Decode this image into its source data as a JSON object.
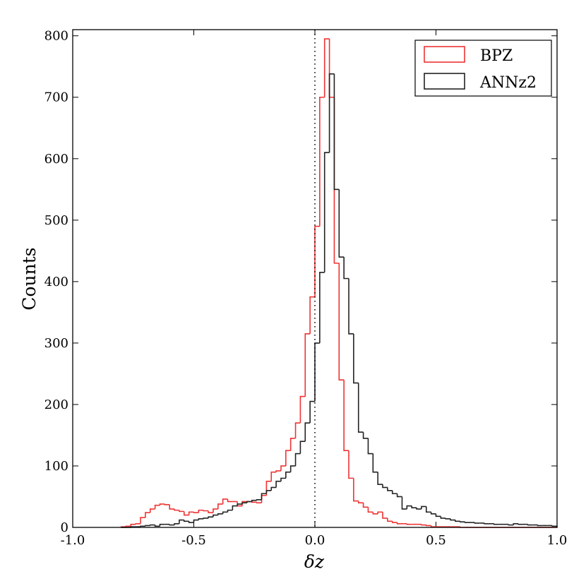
{
  "chart_data": {
    "type": "histogram",
    "xlabel": "δz",
    "ylabel": "Counts",
    "xlim": [
      -1.0,
      1.0
    ],
    "ylim": [
      0,
      810
    ],
    "x_ticks": [
      -1.0,
      -0.5,
      0.0,
      0.5,
      1.0
    ],
    "x_tick_labels": [
      "-1.0",
      "-0.5",
      "0.0",
      "0.5",
      "1.0"
    ],
    "y_ticks": [
      0,
      100,
      200,
      300,
      400,
      500,
      600,
      700,
      800
    ],
    "y_tick_labels": [
      "0",
      "100",
      "200",
      "300",
      "400",
      "500",
      "600",
      "700",
      "800"
    ],
    "grid": false,
    "legend_position": "top-right",
    "reference_line": {
      "x": 0.0,
      "style": "dotted",
      "color": "#000000"
    },
    "bin_start": -0.8,
    "bin_width": 0.02,
    "series": [
      {
        "name": "BPZ",
        "color": "#ee3333",
        "values": [
          1,
          2,
          5,
          6,
          16,
          24,
          30,
          36,
          38,
          37,
          30,
          28,
          26,
          20,
          25,
          24,
          28,
          27,
          24,
          30,
          38,
          46,
          42,
          42,
          35,
          42,
          42,
          41,
          40,
          52,
          75,
          90,
          92,
          100,
          125,
          145,
          170,
          213,
          315,
          375,
          490,
          700,
          795,
          700,
          430,
          240,
          125,
          80,
          43,
          40,
          33,
          25,
          22,
          25,
          15,
          10,
          8,
          6,
          6,
          5,
          5,
          5,
          4,
          3,
          1,
          1,
          1,
          1,
          1,
          1,
          0,
          0,
          0,
          0,
          0,
          0,
          0,
          0,
          0,
          0,
          0,
          0,
          0,
          0,
          0,
          0,
          0,
          0,
          0,
          0
        ]
      },
      {
        "name": "ANNz2",
        "color": "#222222",
        "values": [
          0,
          0,
          1,
          1,
          2,
          3,
          4,
          2,
          5,
          5,
          4,
          6,
          12,
          10,
          8,
          12,
          14,
          15,
          17,
          20,
          22,
          25,
          28,
          35,
          38,
          40,
          42,
          44,
          45,
          55,
          60,
          65,
          75,
          80,
          90,
          100,
          120,
          140,
          170,
          205,
          300,
          415,
          610,
          738,
          550,
          440,
          405,
          315,
          235,
          155,
          145,
          120,
          90,
          70,
          65,
          60,
          55,
          50,
          30,
          35,
          32,
          30,
          34,
          25,
          22,
          18,
          15,
          14,
          12,
          10,
          9,
          8,
          8,
          7,
          7,
          6,
          6,
          5,
          5,
          5,
          4,
          6,
          5,
          5,
          4,
          4,
          3,
          3,
          3,
          2
        ]
      }
    ]
  }
}
